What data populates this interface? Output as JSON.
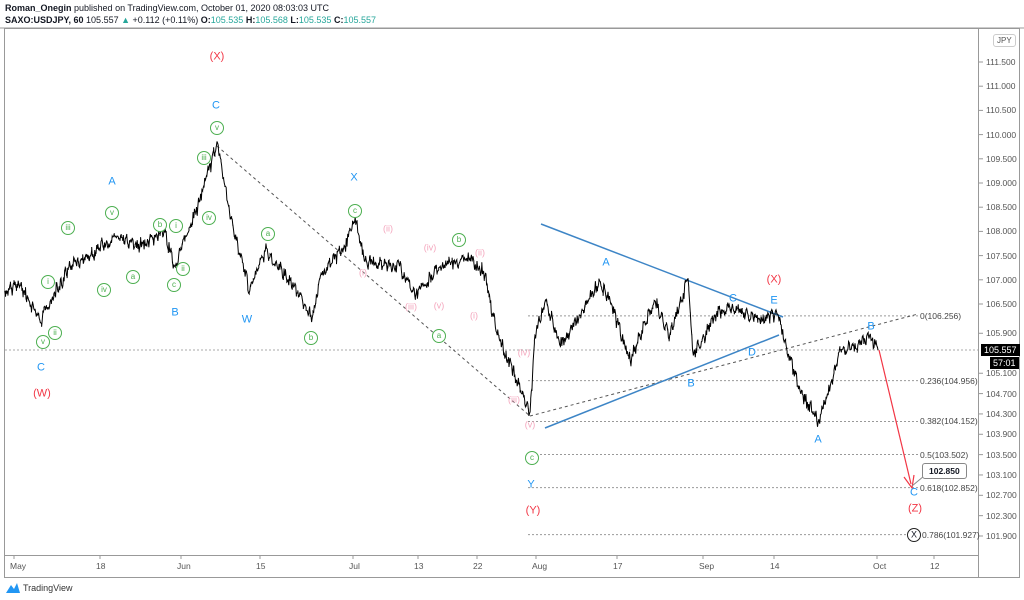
{
  "header": {
    "author": "Roman_Onegin",
    "published": "published on TradingView.com, October 01, 2020 08:03:03 UTC",
    "symbol": "SAXO:USDJPY, 60",
    "last": "105.557",
    "change": "+0.112 (+0.11%)",
    "o_label": "O:",
    "o": "105.535",
    "h_label": "H:",
    "h": "105.568",
    "l_label": "L:",
    "l": "105.535",
    "c_label": "C:",
    "c": "105.557",
    "up_color": "#26a69a"
  },
  "price_axis": {
    "currency": "JPY",
    "labels": [
      "111.500",
      "111.000",
      "110.500",
      "110.000",
      "109.500",
      "109.000",
      "108.500",
      "108.000",
      "107.500",
      "107.000",
      "106.500",
      "105.900",
      "105.100",
      "104.700",
      "104.300",
      "103.900",
      "103.500",
      "103.100",
      "102.700",
      "102.300",
      "101.900"
    ],
    "current_price": "105.557",
    "countdown": "57:01"
  },
  "time_axis": {
    "labels": [
      "May",
      "18",
      "Jun",
      "15",
      "Jul",
      "13",
      "22",
      "Aug",
      "17",
      "Sep",
      "14",
      "Oct",
      "12"
    ]
  },
  "chart_data": {
    "type": "line",
    "title": "SAXO:USDJPY, 60",
    "x_unit": "days since May 1, 2020",
    "ylabel": "JPY",
    "ylim": [
      101.7,
      111.9
    ],
    "series": [
      {
        "name": "USDJPY",
        "points": [
          [
            -1.8,
            106.77
          ],
          [
            1.2,
            106.88
          ],
          [
            5.1,
            106.17
          ],
          [
            11.1,
            107.28
          ],
          [
            15,
            107.48
          ],
          [
            19.6,
            107.89
          ],
          [
            23.9,
            107.69
          ],
          [
            28.2,
            107.99
          ],
          [
            29.9,
            107.28
          ],
          [
            33.5,
            108.4
          ],
          [
            37.5,
            109.82
          ],
          [
            39.6,
            108.4
          ],
          [
            43.2,
            106.77
          ],
          [
            45.9,
            107.59
          ],
          [
            50.2,
            106.98
          ],
          [
            54,
            106.23
          ],
          [
            55.4,
            107.08
          ],
          [
            59.6,
            107.69
          ],
          [
            61.4,
            108.3
          ],
          [
            63.2,
            107.38
          ],
          [
            69.6,
            107.28
          ],
          [
            72.4,
            106.67
          ],
          [
            76.4,
            107.28
          ],
          [
            79.4,
            107.38
          ],
          [
            80.9,
            107.44
          ],
          [
            83.6,
            107.08
          ],
          [
            86.1,
            105.86
          ],
          [
            89.7,
            105.05
          ],
          [
            92.8,
            104.34
          ],
          [
            93.8,
            105.86
          ],
          [
            95.6,
            106.57
          ],
          [
            98.1,
            105.66
          ],
          [
            101.6,
            106.27
          ],
          [
            105,
            106.98
          ],
          [
            106.8,
            106.57
          ],
          [
            110.3,
            105.35
          ],
          [
            114.6,
            106.57
          ],
          [
            117.2,
            105.86
          ],
          [
            120.4,
            107.02
          ],
          [
            121.3,
            105.46
          ],
          [
            125.2,
            106.27
          ],
          [
            127.9,
            106.43
          ],
          [
            133.4,
            106.17
          ],
          [
            136.7,
            106.27
          ],
          [
            137.8,
            105.76
          ],
          [
            140.3,
            104.75
          ],
          [
            143.3,
            104.14
          ],
          [
            145.3,
            104.85
          ],
          [
            147,
            105.56
          ],
          [
            150.2,
            105.66
          ],
          [
            151.8,
            105.86
          ],
          [
            153.2,
            105.557
          ]
        ]
      }
    ],
    "fib_levels": [
      {
        "ratio": "0",
        "price": 106.256,
        "label": "0(106.256)"
      },
      {
        "ratio": "0.236",
        "price": 104.956,
        "label": "0.236(104.956)"
      },
      {
        "ratio": "0.382",
        "price": 104.152,
        "label": "0.382(104.152)"
      },
      {
        "ratio": "0.5",
        "price": 103.502,
        "label": "0.5(103.502)"
      },
      {
        "ratio": "0.618",
        "price": 102.852,
        "label": "0.618(102.852)"
      },
      {
        "ratio": "0.786",
        "price": 101.927,
        "label": "0.786(101.927)"
      }
    ],
    "target_price": "102.850",
    "colors": {
      "wave_major": "#f23645",
      "wave_minor": "#2196f3",
      "wave_sub": "#4caf50",
      "wave_micro": "#f4a6bd",
      "projection": "#f23645",
      "trendline": "#3d85c6"
    }
  },
  "annotations": {
    "red": [
      "(W)",
      "(X)",
      "(Y)",
      "(X)",
      "(Z)"
    ],
    "blue": [
      "C",
      "A",
      "B",
      "C",
      "W",
      "X",
      "A",
      "B",
      "C",
      "D",
      "E",
      "A",
      "B",
      "C",
      "Y"
    ],
    "green": [
      "iii",
      "i",
      "ii",
      "v",
      "iv",
      "v",
      "a",
      "b",
      "i",
      "ii",
      "c",
      "iii",
      "iv",
      "v",
      "a",
      "b",
      "c",
      "a",
      "b",
      "c"
    ],
    "pink": [
      "(ii)",
      "(i)",
      "(iii)",
      "(iv)",
      "(v)",
      "(ii)",
      "(i)",
      "(iv)",
      "(iii)",
      "(v)"
    ],
    "x_mark": "X"
  },
  "footer": {
    "brand": "TradingView"
  }
}
